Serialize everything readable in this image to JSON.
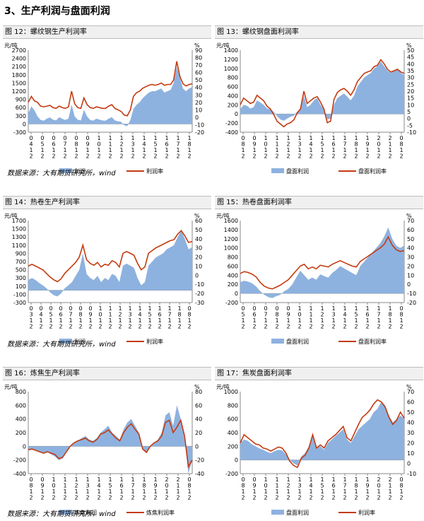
{
  "section_title": "3、生产利润与盘面利润",
  "source_text": "数据来源：大有期货研究所，wind",
  "colors": {
    "bar": "#8eb2df",
    "line": "#c33b11",
    "axis": "#888888"
  },
  "chart_data": [
    {
      "caption": "图 12：螺纹钢生产利润率",
      "type": "area",
      "left_unit": "元/吨",
      "right_unit": "%",
      "left_ticks": [
        "2700",
        "2400",
        "2100",
        "1800",
        "1500",
        "1200",
        "900",
        "600",
        "300",
        "0",
        "-300"
      ],
      "right_ticks": [
        "90",
        "80",
        "70",
        "60",
        "50",
        "40",
        "30",
        "20",
        "10",
        "0",
        "-10",
        "-20"
      ],
      "ylim_left": [
        -300,
        2700
      ],
      "ylim_right": [
        -20,
        90
      ],
      "x_labels": [
        "0412",
        "0512",
        "0612",
        "0712",
        "0812",
        "0912",
        "1012",
        "1112",
        "1212",
        "1312",
        "1412",
        "1512",
        "1612",
        "1712",
        "1812"
      ],
      "series": [
        {
          "name": "利润",
          "axis": "left",
          "kind": "area",
          "values": [
            380,
            650,
            500,
            280,
            150,
            120,
            200,
            240,
            160,
            130,
            250,
            190,
            150,
            200,
            700,
            280,
            160,
            130,
            520,
            280,
            150,
            120,
            200,
            160,
            130,
            120,
            200,
            250,
            130,
            100,
            80,
            -50,
            -80,
            150,
            550,
            700,
            800,
            950,
            1050,
            1150,
            1200,
            1200,
            1250,
            1300,
            1150,
            1200,
            1250,
            1500,
            2100,
            1700,
            1300,
            1200,
            1300,
            1350
          ]
        },
        {
          "name": "利润率",
          "axis": "right",
          "kind": "line",
          "values": [
            20,
            28,
            22,
            20,
            15,
            14,
            15,
            16,
            13,
            12,
            15,
            13,
            12,
            14,
            35,
            18,
            13,
            12,
            26,
            17,
            13,
            12,
            14,
            13,
            12,
            12,
            15,
            17,
            12,
            10,
            8,
            3,
            2,
            10,
            28,
            33,
            35,
            39,
            41,
            43,
            44,
            43,
            44,
            46,
            43,
            44,
            44,
            50,
            75,
            55,
            45,
            42,
            44,
            45
          ]
        }
      ]
    },
    {
      "caption": "图 13：螺纹钢盘面利润率",
      "type": "area",
      "left_unit": "元/吨",
      "right_unit": "%",
      "left_ticks": [
        "1400",
        "1200",
        "1000",
        "800",
        "600",
        "400",
        "200",
        "0",
        "-200",
        "-400"
      ],
      "right_ticks": [
        "50",
        "45",
        "40",
        "35",
        "30",
        "25",
        "20",
        "15",
        "10",
        "5",
        "0",
        "-5",
        "-10"
      ],
      "ylim_left": [
        -400,
        1400
      ],
      "ylim_right": [
        -10,
        50
      ],
      "x_labels": [
        "0812",
        "0912",
        "1012",
        "1112",
        "1212",
        "1312",
        "1412",
        "1512",
        "1612",
        "1712",
        "1812",
        "1912",
        "2012",
        "2112",
        "0812"
      ],
      "series": [
        {
          "name": "盘面利润",
          "axis": "left",
          "kind": "area",
          "values": [
            100,
            200,
            180,
            120,
            150,
            300,
            250,
            200,
            120,
            100,
            50,
            -50,
            -120,
            -150,
            -100,
            -60,
            -40,
            50,
            100,
            400,
            150,
            200,
            300,
            350,
            200,
            100,
            -120,
            -100,
            200,
            350,
            400,
            450,
            380,
            300,
            400,
            600,
            700,
            800,
            850,
            900,
            1000,
            1050,
            1150,
            1050,
            950,
            900,
            950,
            1000,
            900,
            850
          ]
        },
        {
          "name": "盘面利润率",
          "axis": "right",
          "kind": "line",
          "values": [
            10,
            15,
            13,
            11,
            12,
            17,
            15,
            13,
            9,
            7,
            3,
            -2,
            -4,
            -6,
            -4,
            -3,
            -1,
            4,
            7,
            20,
            11,
            13,
            15,
            16,
            12,
            7,
            -3,
            -2,
            14,
            19,
            21,
            22,
            20,
            17,
            21,
            27,
            30,
            33,
            34,
            35,
            38,
            39,
            43,
            40,
            36,
            34,
            35,
            36,
            34,
            33
          ]
        }
      ]
    },
    {
      "caption": "图 14：热卷生产利润率",
      "type": "area",
      "left_unit": "元/吨",
      "right_unit": "%",
      "left_ticks": [
        "1700",
        "1500",
        "1300",
        "1100",
        "900",
        "700",
        "500",
        "300",
        "100",
        "-100",
        "-300"
      ],
      "right_ticks": [
        "60",
        "50",
        "40",
        "30",
        "20",
        "10",
        "0",
        "-10",
        "-20",
        "-30"
      ],
      "ylim_left": [
        -300,
        1700
      ],
      "ylim_right": [
        -30,
        60
      ],
      "x_labels": [
        "0312",
        "0412",
        "0512",
        "0612",
        "0712",
        "0812",
        "0912",
        "1012",
        "1112",
        "1212",
        "1312",
        "1412",
        "1512",
        "1612",
        "1712",
        "1812",
        "0812"
      ],
      "series": [
        {
          "name": "利润",
          "axis": "left",
          "kind": "area",
          "values": [
            250,
            300,
            250,
            180,
            120,
            50,
            -50,
            -120,
            -150,
            -80,
            50,
            120,
            200,
            350,
            500,
            900,
            400,
            300,
            250,
            350,
            200,
            300,
            250,
            400,
            350,
            200,
            600,
            650,
            600,
            550,
            300,
            120,
            200,
            600,
            700,
            800,
            850,
            900,
            1000,
            1050,
            1100,
            1300,
            1450,
            1250,
            1000,
            1050
          ]
        },
        {
          "name": "利润率",
          "axis": "right",
          "kind": "line",
          "values": [
            10,
            12,
            10,
            8,
            6,
            2,
            -2,
            -5,
            -7,
            -4,
            2,
            6,
            10,
            14,
            20,
            33,
            17,
            13,
            11,
            14,
            9,
            12,
            11,
            16,
            14,
            9,
            24,
            26,
            24,
            22,
            13,
            6,
            9,
            24,
            27,
            30,
            32,
            34,
            36,
            38,
            39,
            45,
            49,
            43,
            36,
            37
          ]
        }
      ]
    },
    {
      "caption": "图 15：热卷盘面利润率",
      "type": "area",
      "left_unit": "元/吨",
      "right_unit": "%",
      "left_ticks": [
        "1600",
        "1400",
        "1200",
        "1000",
        "800",
        "600",
        "400",
        "200",
        "0",
        "-200"
      ],
      "right_ticks": [
        "70",
        "60",
        "50",
        "40",
        "30",
        "20",
        "10",
        "0",
        "-10",
        "-20"
      ],
      "ylim_left": [
        -200,
        1600
      ],
      "ylim_right": [
        -20,
        70
      ],
      "x_labels": [
        "0512",
        "0612",
        "0712",
        "0812",
        "0912",
        "1012",
        "1112",
        "1212",
        "1312",
        "1412",
        "1512",
        "1612",
        "1712",
        "1812",
        "0812"
      ],
      "series": [
        {
          "name": "盘面利润",
          "axis": "left",
          "kind": "area",
          "values": [
            250,
            280,
            260,
            220,
            150,
            50,
            -30,
            -80,
            -100,
            -60,
            -30,
            50,
            100,
            200,
            350,
            500,
            400,
            300,
            350,
            300,
            420,
            380,
            350,
            450,
            520,
            600,
            550,
            500,
            450,
            400,
            600,
            700,
            800,
            900,
            1000,
            1100,
            1250,
            1450,
            1200,
            1050,
            1000,
            1050
          ]
        },
        {
          "name": "盘面利润率",
          "axis": "right",
          "kind": "line",
          "values": [
            12,
            14,
            13,
            11,
            8,
            2,
            -2,
            -4,
            -5,
            -3,
            -1,
            2,
            5,
            10,
            15,
            20,
            22,
            17,
            19,
            17,
            21,
            20,
            19,
            22,
            24,
            26,
            24,
            22,
            20,
            19,
            25,
            28,
            31,
            34,
            37,
            40,
            44,
            52,
            43,
            38,
            36,
            37
          ]
        }
      ]
    },
    {
      "caption": "图 16：炼焦生产利润率",
      "type": "area",
      "left_unit": "元/吨",
      "right_unit": "%",
      "left_ticks": [
        "800",
        "600",
        "400",
        "200",
        "0",
        "-200",
        "-400"
      ],
      "right_ticks": [
        "80",
        "60",
        "40",
        "20",
        "0",
        "-20",
        "-40"
      ],
      "ylim_left": [
        -400,
        800
      ],
      "ylim_right": [
        -40,
        80
      ],
      "x_labels": [
        "0812",
        "0912",
        "1012",
        "1112",
        "1212",
        "1312",
        "1412",
        "1512",
        "1612",
        "1712",
        "1812",
        "1912",
        "2012",
        "2112",
        "0812"
      ],
      "series": [
        {
          "name": "炼焦利润",
          "axis": "left",
          "kind": "area",
          "values": [
            -50,
            -40,
            -60,
            -80,
            -100,
            -80,
            -120,
            -150,
            -200,
            -180,
            -80,
            0,
            50,
            80,
            120,
            150,
            100,
            80,
            120,
            200,
            250,
            300,
            200,
            150,
            100,
            250,
            350,
            400,
            300,
            200,
            -50,
            -100,
            0,
            50,
            100,
            200,
            450,
            500,
            300,
            600,
            400,
            100,
            -400,
            -200
          ]
        },
        {
          "name": "炼焦利润率",
          "axis": "right",
          "kind": "line",
          "values": [
            -5,
            -4,
            -6,
            -8,
            -10,
            -8,
            -10,
            -12,
            -18,
            -16,
            -8,
            0,
            5,
            8,
            10,
            12,
            8,
            6,
            10,
            18,
            20,
            24,
            18,
            12,
            8,
            20,
            28,
            33,
            25,
            18,
            -4,
            -9,
            0,
            5,
            8,
            15,
            35,
            38,
            20,
            28,
            38,
            15,
            -30,
            -20
          ]
        }
      ]
    },
    {
      "caption": "图 17：焦炭盘面利润率",
      "type": "area",
      "left_unit": "元/吨",
      "right_unit": "%",
      "left_ticks": [
        "1000",
        "800",
        "600",
        "400",
        "200",
        "0",
        "-200"
      ],
      "right_ticks": [
        "70",
        "60",
        "50",
        "40",
        "30",
        "20",
        "10",
        "0",
        "-10"
      ],
      "ylim_left": [
        -200,
        1000
      ],
      "ylim_right": [
        -10,
        70
      ],
      "x_labels": [
        "0812",
        "0912",
        "1012",
        "1112",
        "1212",
        "1312",
        "1412",
        "1512",
        "1612",
        "1712",
        "1812",
        "1912",
        "2012",
        "2112",
        "0812"
      ],
      "series": [
        {
          "name": "盘面利润",
          "axis": "left",
          "kind": "area",
          "values": [
            250,
            300,
            280,
            230,
            200,
            170,
            150,
            120,
            100,
            130,
            150,
            140,
            80,
            0,
            -50,
            -80,
            50,
            100,
            200,
            350,
            180,
            200,
            150,
            250,
            300,
            350,
            400,
            450,
            300,
            250,
            350,
            450,
            500,
            550,
            600,
            700,
            750,
            850,
            800,
            650,
            550,
            600,
            650,
            600
          ]
        },
        {
          "name": "利润率",
          "axis": "right",
          "kind": "line",
          "values": [
            20,
            28,
            25,
            22,
            19,
            18,
            15,
            14,
            12,
            14,
            16,
            15,
            10,
            2,
            -2,
            -4,
            5,
            8,
            15,
            28,
            15,
            18,
            15,
            22,
            25,
            28,
            32,
            36,
            25,
            22,
            30,
            38,
            45,
            48,
            52,
            58,
            62,
            60,
            55,
            45,
            38,
            42,
            50,
            44
          ]
        }
      ]
    }
  ]
}
